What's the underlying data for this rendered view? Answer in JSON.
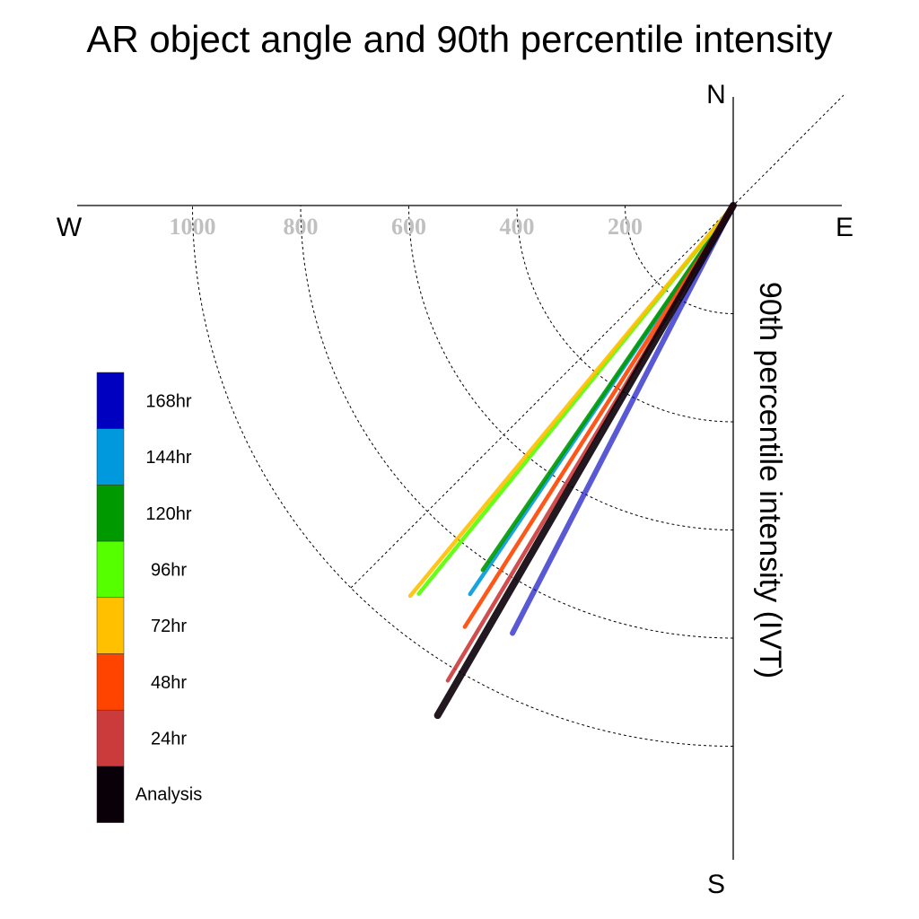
{
  "chart_data": {
    "type": "polar-vector",
    "title": "AR object angle and 90th percentile intensity",
    "ylabel": "90th percentile intensity (IVT)",
    "compass": {
      "north": "N",
      "south": "S",
      "east": "E",
      "west": "W"
    },
    "radial_ticks": [
      "1000",
      "800",
      "600",
      "400",
      "200"
    ],
    "radial_tick_values": [
      1000,
      800,
      600,
      400,
      200
    ],
    "radial_max": 1100,
    "grid": true,
    "legend_position": "left",
    "series": [
      {
        "name": "168hr",
        "color": "#0000c0",
        "angle_deg": 207.3,
        "intensity": 890
      },
      {
        "name": "144hr",
        "color": "#0099dd",
        "angle_deg": 214.1,
        "intensity": 868
      },
      {
        "name": "120hr",
        "color": "#009900",
        "angle_deg": 214.5,
        "intensity": 818
      },
      {
        "name": "96hr",
        "color": "#55ff00",
        "angle_deg": 219.0,
        "intensity": 924
      },
      {
        "name": "72hr",
        "color": "#ffc000",
        "angle_deg": 219.6,
        "intensity": 937
      },
      {
        "name": "48hr",
        "color": "#ff4400",
        "angle_deg": 212.5,
        "intensity": 924
      },
      {
        "name": "24hr",
        "color": "#cc3b3b",
        "angle_deg": 211.0,
        "intensity": 1025
      },
      {
        "name": "Analysis",
        "color": "#0a0008",
        "angle_deg": 210.1,
        "intensity": 1090
      }
    ]
  }
}
